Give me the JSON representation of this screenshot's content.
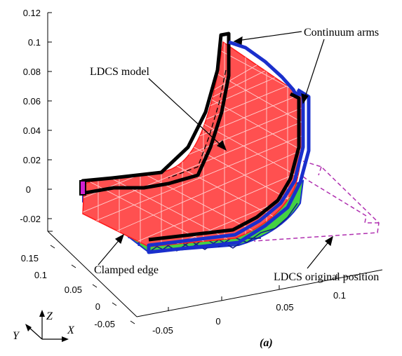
{
  "z_ticks": [
    "0.12",
    "0.1",
    "0.08",
    "0.06",
    "0.04",
    "0.02",
    "0",
    "-0.02"
  ],
  "y_ticks": [
    "0.15",
    "0.1",
    "0.05",
    "0",
    "-0.05"
  ],
  "x_ticks": [
    "-0.05",
    "0",
    "0.05",
    "0.1"
  ],
  "annotations": {
    "continuum_arms": "Continuum arms",
    "ldcs_model": "LDCS model",
    "clamped_edge": "Clamped edge",
    "ldcs_original_position": "LDCS original position"
  },
  "triad": {
    "z": "Z",
    "y": "Y",
    "x": "X"
  },
  "panel_label": "(a)",
  "colors": {
    "mesh": "#ff2020",
    "mesh_fill": "#ff5a5a",
    "support_green": "#44d144",
    "arm_black": "#000000",
    "arm_blue": "#1a2fcc",
    "dashed_original": "#b030b0"
  }
}
